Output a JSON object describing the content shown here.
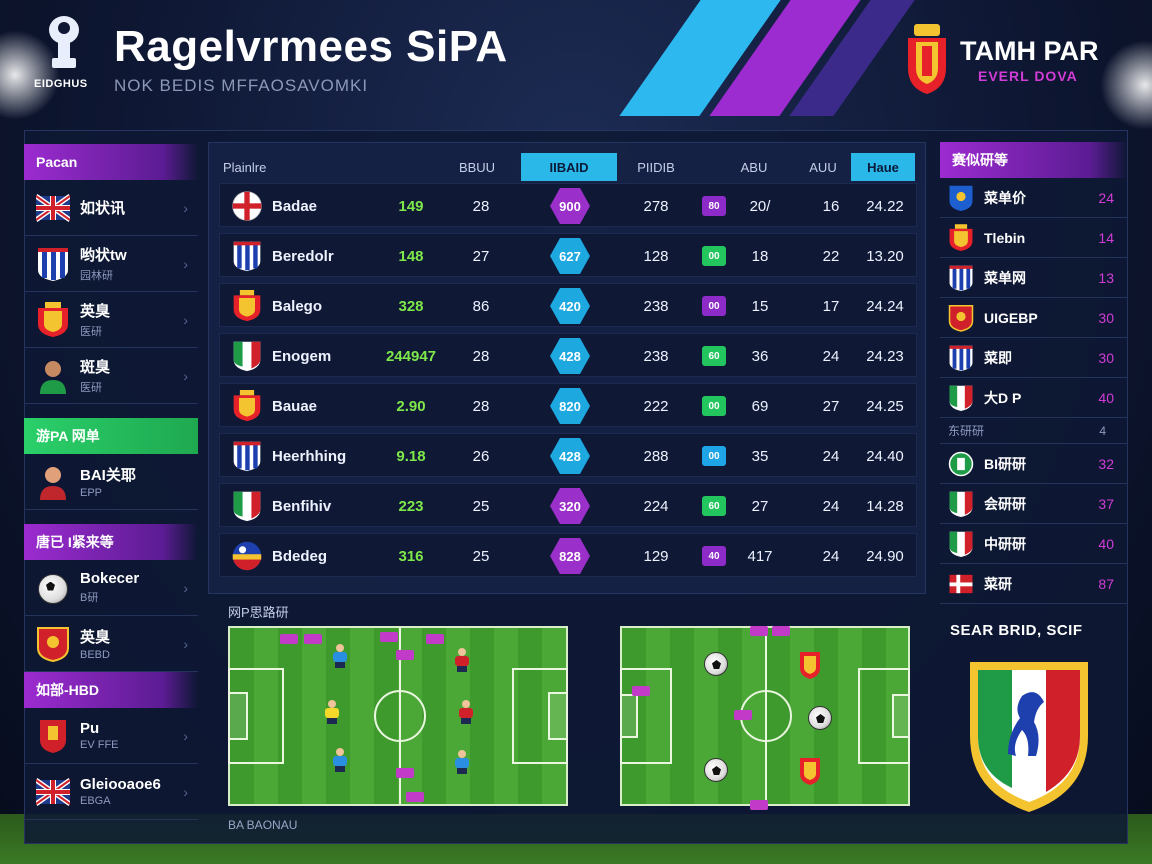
{
  "header": {
    "title": "Ragelvrmees SiPA",
    "subtitle": "NOK BEDIS MFFAOSAVOMKI",
    "logo_caption": "EIDGHUS",
    "brand_name": "TAMH PAR",
    "brand_tag": "EVERL DOVA"
  },
  "left_sidebar": {
    "section1": "Pacan",
    "section1_items": [
      {
        "label": "如状讯",
        "sub": "",
        "icon": "uk-flag-icon"
      },
      {
        "label": "哟状tw",
        "sub": "园林研",
        "icon": "stripes-flag-icon"
      },
      {
        "label": "英臭",
        "sub": "医研",
        "icon": "spain-crest-icon"
      },
      {
        "label": "斑臭",
        "sub": "医研",
        "icon": "player-avatar-icon"
      }
    ],
    "section2": "游PA 网单",
    "section2_items": [
      {
        "label": "BAI关耶",
        "sub": "EPP",
        "icon": "player-avatar-icon"
      }
    ],
    "section3": "唐已 I紧来等",
    "section3_items": [
      {
        "label": "Bokecer",
        "sub": "B研",
        "icon": "soccer-ball-icon"
      },
      {
        "label": "英臭",
        "sub": "BEBD",
        "icon": "red-crest-icon"
      }
    ],
    "section4": "如部-HBD",
    "section4_items": [
      {
        "label": "Pu",
        "sub": "EV FFE",
        "icon": "red-crest-icon"
      },
      {
        "label": "Gleiooaoe6",
        "sub": "EBGA",
        "icon": "uk-flag-icon"
      }
    ]
  },
  "table": {
    "headers": [
      "Plainlre",
      "BBUU",
      "IIBAID",
      "PIIDIB",
      "ABU",
      "AUU",
      "Haue"
    ],
    "rows": [
      {
        "team": "Badae",
        "c1": "149",
        "c2": "28",
        "hex": "900",
        "hex_color": "#9b2fc9",
        "c3": "278",
        "badge": "80",
        "badge_color": "p",
        "c4": "20/",
        "c5": "16",
        "c6": "24.22",
        "icon": "england-flag-icon"
      },
      {
        "team": "Beredolr",
        "c1": "148",
        "c2": "27",
        "hex": "627",
        "hex_color": "#1ea8e0",
        "c3": "128",
        "badge": "00",
        "badge_color": "g",
        "c4": "18",
        "c5": "22",
        "c6": "13.20",
        "icon": "stripes-flag-icon"
      },
      {
        "team": "Balego",
        "c1": "328",
        "c2": "86",
        "hex": "420",
        "hex_color": "#1ea8e0",
        "c3": "238",
        "badge": "00",
        "badge_color": "p",
        "c4": "15",
        "c5": "17",
        "c6": "24.24",
        "icon": "spain-crest-icon"
      },
      {
        "team": "Enogem",
        "c1": "244947",
        "c2": "28",
        "hex": "428",
        "hex_color": "#1ea8e0",
        "c3": "238",
        "badge": "60",
        "badge_color": "g",
        "c4": "36",
        "c5": "24",
        "c6": "24.23",
        "icon": "italy-shield-icon"
      },
      {
        "team": "Bauae",
        "c1": "2.90",
        "c2": "28",
        "hex": "820",
        "hex_color": "#1ea8e0",
        "c3": "222",
        "badge": "00",
        "badge_color": "g",
        "c4": "69",
        "c5": "27",
        "c6": "24.25",
        "icon": "spain-crest-icon"
      },
      {
        "team": "Heerhhing",
        "c1": "9.18",
        "c2": "26",
        "hex": "428",
        "hex_color": "#1ea8e0",
        "c3": "288",
        "badge": "00",
        "badge_color": "b",
        "c4": "35",
        "c5": "24",
        "c6": "24.40",
        "icon": "stripes-flag-icon"
      },
      {
        "team": "Benfihiv",
        "c1": "223",
        "c2": "25",
        "hex": "320",
        "hex_color": "#9b2fc9",
        "c3": "224",
        "badge": "60",
        "badge_color": "g",
        "c4": "27",
        "c5": "24",
        "c6": "14.28",
        "icon": "italy-shield-icon"
      },
      {
        "team": "Bdedeg",
        "c1": "316",
        "c2": "25",
        "hex": "828",
        "hex_color": "#9b2fc9",
        "c3": "129",
        "badge": "40",
        "badge_color": "p",
        "c4": "417",
        "c5": "24",
        "c6": "24.90",
        "icon": "mixed-flag-icon"
      }
    ]
  },
  "pitches": {
    "label": "网P思路研",
    "footer": "BA BAONAU"
  },
  "right_sidebar": {
    "header": "赛似研等",
    "rows": [
      {
        "name": "菜单价",
        "value": "24",
        "icon": "blue-crest-icon"
      },
      {
        "name": "Tlebin",
        "value": "14",
        "icon": "spain-crest-icon"
      },
      {
        "name": "菜单网",
        "value": "13",
        "icon": "stripes-flag-icon"
      },
      {
        "name": "UIGEBP",
        "value": "30",
        "icon": "red-crest-icon"
      },
      {
        "name": "菜即",
        "value": "30",
        "icon": "stripes-flag-icon"
      },
      {
        "name": "大D P",
        "value": "40",
        "icon": "italy-shield-icon"
      }
    ],
    "sub_row": {
      "name": "东研研",
      "value": "4"
    },
    "rows2": [
      {
        "name": "BI研研",
        "value": "32",
        "icon": "green-crest-icon"
      },
      {
        "name": "会研研",
        "value": "37",
        "icon": "italy-shield-icon"
      },
      {
        "name": "中研研",
        "value": "40",
        "icon": "italy-shield-icon"
      },
      {
        "name": "菜研",
        "value": "87",
        "icon": "denmark-flag-icon"
      }
    ],
    "bottom_title": "SEAR BRID, SCIF"
  },
  "colors": {
    "accent_purple": "#9c2bd0",
    "accent_cyan": "#29b8e8",
    "accent_green": "#2ad06a",
    "value_magenta": "#d23cd6"
  }
}
